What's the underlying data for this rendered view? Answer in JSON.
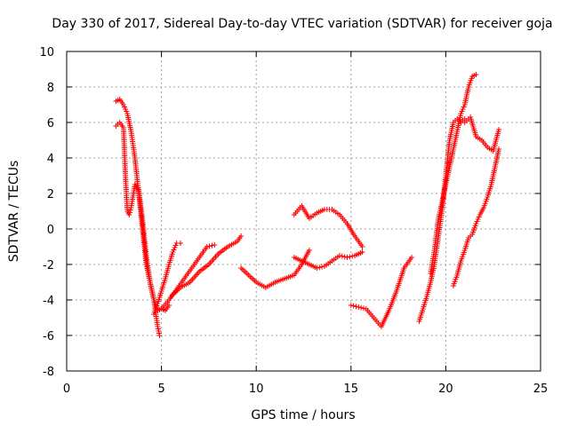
{
  "chart_data": {
    "type": "scatter",
    "title": "Day 330 of 2017, Sidereal Day-to-day VTEC variation (SDTVAR) for receiver goja",
    "xlabel": "GPS time / hours",
    "ylabel": "SDTVAR / TECUs",
    "xlim": [
      0,
      25
    ],
    "ylim": [
      -8,
      10
    ],
    "x_ticks": [
      0,
      5,
      10,
      15,
      20,
      25
    ],
    "y_ticks": [
      -8,
      -6,
      -4,
      -2,
      0,
      2,
      4,
      6,
      8,
      10
    ],
    "grid": true,
    "marker": "+",
    "series_color": "#ff0000",
    "series": [
      {
        "x": [
          2.6,
          2.8,
          3.0,
          3.2,
          3.4,
          3.6,
          3.8,
          4.0,
          4.2,
          4.4,
          4.6,
          4.8,
          5.0,
          5.2,
          5.4
        ],
        "y": [
          7.2,
          7.3,
          7.0,
          6.5,
          5.5,
          4.0,
          2.0,
          0.0,
          -2.0,
          -3.0,
          -4.0,
          -4.6,
          -4.5,
          -4.6,
          -4.3
        ]
      },
      {
        "x": [
          2.6,
          2.8,
          3.0,
          3.1,
          3.2,
          3.3,
          3.4,
          3.6,
          3.8,
          4.0,
          4.2,
          4.4,
          4.6,
          4.8,
          4.9
        ],
        "y": [
          5.8,
          6.0,
          5.7,
          3.0,
          1.0,
          0.8,
          1.2,
          2.5,
          2.2,
          0.5,
          -1.5,
          -3.0,
          -4.0,
          -5.5,
          -6.0
        ]
      },
      {
        "x": [
          4.6,
          4.8,
          5.0,
          5.2,
          5.4,
          5.6,
          5.8,
          6.0
        ],
        "y": [
          -4.8,
          -4.2,
          -3.5,
          -2.8,
          -2.0,
          -1.3,
          -0.8,
          -0.8
        ]
      },
      {
        "x": [
          5.0,
          5.4,
          5.8,
          6.2,
          6.6,
          7.0,
          7.4,
          7.8
        ],
        "y": [
          -4.5,
          -4.0,
          -3.4,
          -2.8,
          -2.2,
          -1.6,
          -1.0,
          -0.9
        ]
      },
      {
        "x": [
          5.5,
          6.0,
          6.5,
          7.0,
          7.5,
          8.0,
          8.5,
          9.0,
          9.2
        ],
        "y": [
          -3.8,
          -3.3,
          -3.0,
          -2.4,
          -2.0,
          -1.4,
          -1.0,
          -0.7,
          -0.4
        ]
      },
      {
        "x": [
          9.2,
          9.6,
          10.0,
          10.5,
          11.0,
          11.5,
          12.0,
          12.4,
          12.8
        ],
        "y": [
          -2.2,
          -2.6,
          -3.0,
          -3.3,
          -3.0,
          -2.8,
          -2.6,
          -2.0,
          -1.2
        ]
      },
      {
        "x": [
          12.0,
          12.4,
          12.8,
          13.2,
          13.6,
          14.0,
          14.4,
          14.8,
          15.2,
          15.6
        ],
        "y": [
          0.8,
          1.3,
          0.6,
          0.9,
          1.1,
          1.1,
          0.8,
          0.3,
          -0.4,
          -1.0
        ]
      },
      {
        "x": [
          12.0,
          12.4,
          12.8,
          13.2,
          13.6,
          14.0,
          14.4,
          14.8,
          15.2,
          15.6
        ],
        "y": [
          -1.6,
          -1.8,
          -2.0,
          -2.2,
          -2.1,
          -1.8,
          -1.5,
          -1.6,
          -1.5,
          -1.3
        ]
      },
      {
        "x": [
          15.0,
          15.4,
          15.8,
          16.2,
          16.6,
          17.0,
          17.4,
          17.8,
          18.2
        ],
        "y": [
          -4.3,
          -4.4,
          -4.5,
          -5.0,
          -5.5,
          -4.6,
          -3.5,
          -2.2,
          -1.6
        ]
      },
      {
        "x": [
          18.6,
          18.8,
          19.0,
          19.2,
          19.4,
          19.6,
          19.8,
          20.0,
          20.2,
          20.4,
          20.6,
          20.8,
          21.0
        ],
        "y": [
          -5.2,
          -4.5,
          -3.8,
          -3.0,
          -2.0,
          -0.5,
          1.0,
          3.0,
          5.0,
          6.0,
          6.2,
          6.0,
          6.2
        ]
      },
      {
        "x": [
          19.2,
          19.4,
          19.6,
          19.8,
          20.0,
          20.2,
          20.4,
          20.6,
          20.8,
          21.0,
          21.2,
          21.4,
          21.6
        ],
        "y": [
          -2.5,
          -1.2,
          0.5,
          1.5,
          2.5,
          3.5,
          4.5,
          5.5,
          6.5,
          7.0,
          8.0,
          8.6,
          8.7
        ]
      },
      {
        "x": [
          21.0,
          21.3,
          21.6,
          21.9,
          22.2,
          22.5,
          22.8
        ],
        "y": [
          6.0,
          6.3,
          5.2,
          5.0,
          4.6,
          4.4,
          5.6
        ]
      },
      {
        "x": [
          20.4,
          20.6,
          20.8,
          21.0,
          21.2,
          21.4,
          21.6,
          21.8,
          22.0,
          22.2,
          22.4,
          22.6,
          22.8
        ],
        "y": [
          -3.2,
          -2.6,
          -1.8,
          -1.2,
          -0.5,
          -0.3,
          0.3,
          0.8,
          1.2,
          1.8,
          2.5,
          3.5,
          4.5
        ]
      }
    ]
  }
}
